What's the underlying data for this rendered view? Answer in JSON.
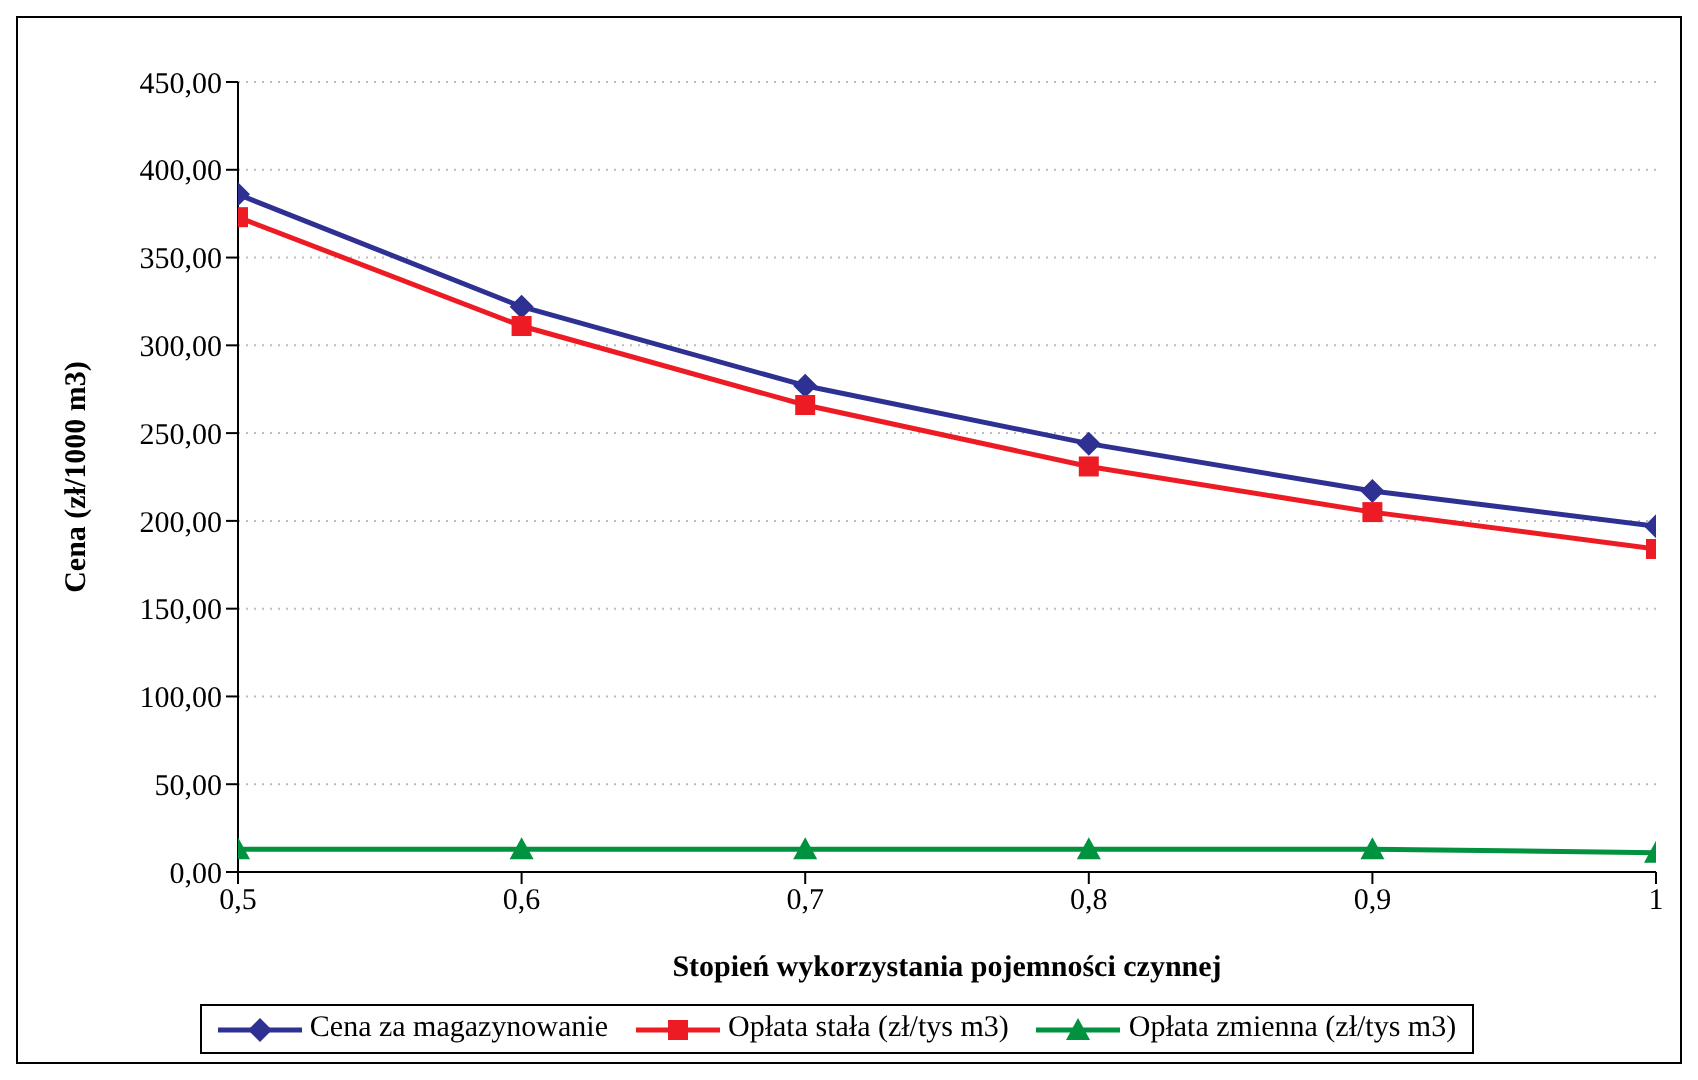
{
  "chart_data": {
    "type": "line",
    "xlabel": "Stopień wykorzystania pojemności czynnej",
    "ylabel": "Cena (zł/1000 m3)",
    "x": [
      0.5,
      0.6,
      0.7,
      0.8,
      0.9,
      1
    ],
    "xlim": [
      0.5,
      1
    ],
    "xticks": [
      {
        "value": 0.5,
        "label": "0,5"
      },
      {
        "value": 0.6,
        "label": "0,6"
      },
      {
        "value": 0.7,
        "label": "0,7"
      },
      {
        "value": 0.8,
        "label": "0,8"
      },
      {
        "value": 0.9,
        "label": "0,9"
      },
      {
        "value": 1,
        "label": "1"
      }
    ],
    "ylim": [
      0,
      450
    ],
    "yticks": [
      {
        "value": 0,
        "label": "0,00"
      },
      {
        "value": 50,
        "label": "50,00"
      },
      {
        "value": 100,
        "label": "100,00"
      },
      {
        "value": 150,
        "label": "150,00"
      },
      {
        "value": 200,
        "label": "200,00"
      },
      {
        "value": 250,
        "label": "250,00"
      },
      {
        "value": 300,
        "label": "300,00"
      },
      {
        "value": 350,
        "label": "350,00"
      },
      {
        "value": 400,
        "label": "400,00"
      },
      {
        "value": 450,
        "label": "450,00"
      }
    ],
    "grid": "y",
    "legend": "bottom",
    "series": [
      {
        "name": "Cena za magazynowanie",
        "color": "#2e3192",
        "marker": "diamond",
        "values": [
          386,
          322,
          277,
          244,
          217,
          197
        ]
      },
      {
        "name": "Opłata stała (zł/tys m3)",
        "color": "#ed1c24",
        "marker": "square",
        "values": [
          373,
          311,
          266,
          231,
          205,
          184
        ]
      },
      {
        "name": "Opłata zmienna (zł/tys m3)",
        "color": "#00923f",
        "marker": "triangle",
        "values": [
          13,
          13,
          13,
          13,
          13,
          11
        ]
      }
    ]
  }
}
